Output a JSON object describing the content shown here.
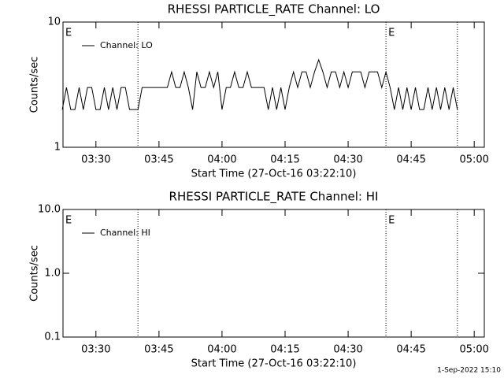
{
  "chart_data": [
    {
      "type": "line",
      "title": "RHESSI PARTICLE_RATE Channel: LO",
      "x_label": "Start Time (27-Oct-16 03:22:10)",
      "y_label": "Counts/sec",
      "x": [
        "03:22",
        "03:23",
        "03:24",
        "03:25",
        "03:26",
        "03:27",
        "03:28",
        "03:29",
        "03:30",
        "03:31",
        "03:32",
        "03:33",
        "03:34",
        "03:35",
        "03:36",
        "03:37",
        "03:38",
        "03:39",
        "03:40",
        "03:41",
        "03:42",
        "03:43",
        "03:44",
        "03:45",
        "03:46",
        "03:47",
        "03:48",
        "03:49",
        "03:50",
        "03:51",
        "03:52",
        "03:53",
        "03:54",
        "03:55",
        "03:56",
        "03:57",
        "03:58",
        "03:59",
        "04:00",
        "04:01",
        "04:02",
        "04:03",
        "04:04",
        "04:05",
        "04:06",
        "04:07",
        "04:08",
        "04:09",
        "04:10",
        "04:11",
        "04:12",
        "04:13",
        "04:14",
        "04:15",
        "04:16",
        "04:17",
        "04:18",
        "04:19",
        "04:20",
        "04:21",
        "04:22",
        "04:23",
        "04:24",
        "04:25",
        "04:26",
        "04:27",
        "04:28",
        "04:29",
        "04:30",
        "04:31",
        "04:32",
        "04:33",
        "04:34",
        "04:35",
        "04:36",
        "04:37",
        "04:38",
        "04:39",
        "04:40",
        "04:41",
        "04:42",
        "04:43",
        "04:44",
        "04:45",
        "04:46",
        "04:47",
        "04:48",
        "04:49",
        "04:50",
        "04:51",
        "04:52",
        "04:53",
        "04:54",
        "04:55",
        "04:56"
      ],
      "series": [
        {
          "name": "Channel: LO",
          "color": "#000000",
          "values": [
            2,
            3,
            2,
            2,
            3,
            2,
            3,
            3,
            2,
            2,
            3,
            2,
            3,
            2,
            3,
            3,
            2,
            2,
            2,
            3,
            3,
            3,
            3,
            3,
            3,
            3,
            4,
            3,
            3,
            4,
            3,
            2,
            4,
            3,
            3,
            4,
            3,
            4,
            2,
            3,
            3,
            4,
            3,
            3,
            4,
            3,
            3,
            3,
            3,
            2,
            3,
            2,
            3,
            2,
            3,
            4,
            3,
            4,
            4,
            3,
            4,
            5,
            4,
            3,
            4,
            4,
            3,
            4,
            3,
            4,
            4,
            4,
            3,
            4,
            4,
            4,
            3,
            4,
            3,
            2,
            3,
            2,
            3,
            2,
            3,
            2,
            2,
            3,
            2,
            3,
            2,
            3,
            2,
            3,
            2
          ]
        }
      ],
      "xlim": [
        "03:22:10",
        "05:02:24"
      ],
      "xticks": [
        "03:30",
        "03:45",
        "04:00",
        "04:15",
        "04:30",
        "04:45",
        "05:00"
      ],
      "ylim": [
        1,
        10
      ],
      "yticks": [
        1,
        10
      ],
      "log_y": true,
      "legend": "upper left",
      "markers": [
        "03:40",
        "04:39",
        "04:56"
      ],
      "annotations": [
        {
          "text": "E",
          "x": "03:22:10"
        },
        {
          "text": "E",
          "x": "04:39"
        }
      ]
    },
    {
      "type": "line",
      "title": "RHESSI PARTICLE_RATE Channel: HI",
      "x_label": "Start Time (27-Oct-16 03:22:10)",
      "y_label": "Counts/sec",
      "x": [],
      "series": [
        {
          "name": "Channel: HI",
          "color": "#000000",
          "values": []
        }
      ],
      "xlim": [
        "03:22:10",
        "05:02:24"
      ],
      "xticks": [
        "03:30",
        "03:45",
        "04:00",
        "04:15",
        "04:30",
        "04:45",
        "05:00"
      ],
      "ylim": [
        0.1,
        10
      ],
      "yticks": [
        {
          "value": 0.1,
          "label": "0.1"
        },
        {
          "value": 1,
          "label": "1.0"
        },
        {
          "value": 10,
          "label": "10.0"
        }
      ],
      "log_y": true,
      "legend": "upper left",
      "markers": [
        "03:40",
        "04:39",
        "04:56"
      ],
      "annotations": [
        {
          "text": "E",
          "x": "03:22:10"
        },
        {
          "text": "E",
          "x": "04:39"
        }
      ]
    }
  ],
  "footer": "1-Sep-2022 15:10"
}
